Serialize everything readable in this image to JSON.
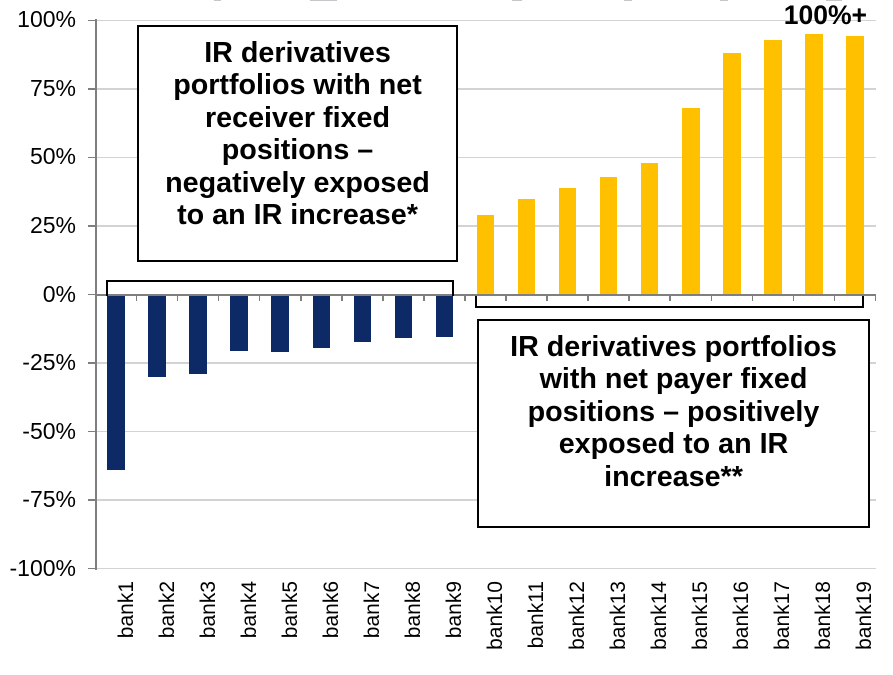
{
  "chart_data": {
    "type": "bar",
    "categories": [
      "bank1",
      "bank2",
      "bank3",
      "bank4",
      "bank5",
      "bank6",
      "bank7",
      "bank8",
      "bank9",
      "bank10",
      "bank11",
      "bank12",
      "bank13",
      "bank14",
      "bank15",
      "bank16",
      "bank17",
      "bank18",
      "bank19"
    ],
    "values": [
      -64,
      -30,
      -29,
      -20.5,
      -21,
      -19.5,
      -17.5,
      -16,
      -15.5,
      29,
      35,
      39,
      43,
      48,
      68,
      88,
      93,
      95,
      94.5
    ],
    "ylim": [
      -100,
      100
    ],
    "ytick_step": 25,
    "ytick_labels": [
      "100%",
      "75%",
      "50%",
      "25%",
      "0%",
      "-25%",
      "-50%",
      "-75%",
      "-100%"
    ],
    "grid": true,
    "legend": false,
    "colors": {
      "bar_negative": "#0E2A66",
      "bar_positive": "#FFC000",
      "gridline": "#D3D3D3",
      "axis": "#7F7F7F",
      "text": "#000000",
      "annotation_border": "#000000",
      "annotation_background": "#FFFFFF"
    },
    "annotations": {
      "cap_label": "100%+",
      "negative_group": {
        "full_text": "IR derivatives portfolios with net receiver fixed positions – negatively exposed to an IR increase*",
        "lines": [
          "IR derivatives",
          "portfolios with net",
          "receiver fixed",
          "positions –",
          "negatively exposed",
          "to an IR increase*"
        ]
      },
      "positive_group": {
        "full_text": "IR derivatives portfolios with net payer fixed positions – positively exposed to an IR increase**",
        "lines": [
          "IR derivatives portfolios",
          "with net payer fixed",
          "positions – positively",
          "exposed to an IR",
          "increase**"
        ]
      }
    }
  }
}
